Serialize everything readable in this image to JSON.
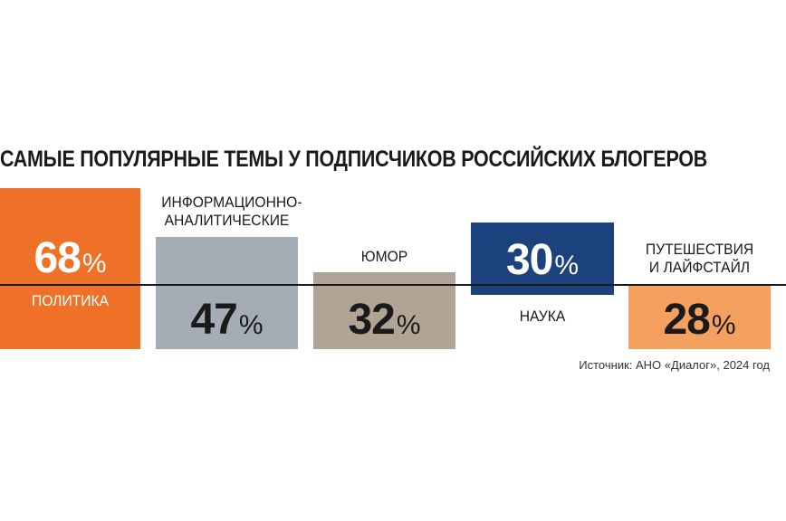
{
  "chart_data": {
    "type": "bar",
    "title": "САМЫЕ ПОПУЛЯРНЫЕ ТЕМЫ У ПОДПИСЧИКОВ РОССИЙСКИХ БЛОГЕРОВ",
    "unit": "%",
    "baseline_value": 40,
    "categories": [
      {
        "label": "ПОЛИТИКА",
        "value": 68,
        "value_text": "68",
        "color": "#ee7127",
        "label_color": "#ffffff",
        "value_color": "#ffffff",
        "label_position": "inside"
      },
      {
        "label": "ИНФОРМАЦИОННО-\nАНАЛИТИЧЕСКИЕ",
        "value": 47,
        "value_text": "47",
        "color": "#a4adb5",
        "label_color": "#1a1a1a",
        "value_color": "#1a1a1a",
        "label_position": "above"
      },
      {
        "label": "ЮМОР",
        "value": 32,
        "value_text": "32",
        "color": "#b0a595",
        "label_color": "#1a1a1a",
        "value_color": "#1a1a1a",
        "label_position": "above"
      },
      {
        "label": "НАУКА",
        "value": 30,
        "value_text": "30",
        "color": "#1c427e",
        "label_color": "#1a1a1a",
        "value_color": "#ffffff",
        "label_position": "below"
      },
      {
        "label": "ПУТЕШЕСТВИЯ\nИ ЛАЙФСТАЙЛ",
        "value": 28,
        "value_text": "28",
        "color": "#f4a05f",
        "label_color": "#1a1a1a",
        "value_color": "#1a1a1a",
        "label_position": "above"
      }
    ],
    "source": "Источник: АНО «Диалог», 2024 год"
  }
}
